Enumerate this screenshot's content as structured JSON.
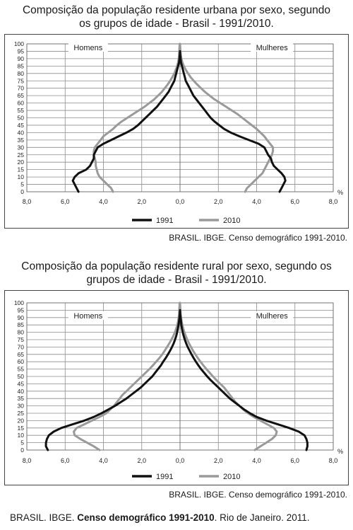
{
  "charts": [
    {
      "title_line1": "Composição da população residente urbana por sexo, segundo",
      "title_line2": "os grupos de idade - Brasil - 1991/2010.",
      "source": "BRASIL. IBGE. Censo demográfico 1991-2010."
    },
    {
      "title_line1": "Composição da população residente rural por sexo, segundo os",
      "title_line2": "grupos de idade - Brasil - 1991/2010.",
      "source": "BRASIL. IBGE. Censo demográfico 1991-2010."
    }
  ],
  "footer": {
    "prefix": "BRASIL. IBGE. ",
    "bold": "Censo demográfico 1991-2010",
    "suffix": ". Rio de Janeiro. 2011."
  },
  "chart_data": [
    {
      "type": "line",
      "title": "Composição da população residente urbana por sexo, segundo os grupos de idade - Brasil - 1991/2010.",
      "y_ticks": [
        0,
        5,
        10,
        15,
        20,
        25,
        30,
        35,
        40,
        45,
        50,
        55,
        60,
        65,
        70,
        75,
        80,
        85,
        90,
        95,
        100
      ],
      "x_tick_labels": [
        "8,0",
        "6,0",
        "4,0",
        "2,0",
        "0,0",
        "2,0",
        "4,0",
        "6,0",
        "8,0"
      ],
      "x_unit": "%",
      "xlim": [
        -8,
        8
      ],
      "ylim": [
        0,
        100
      ],
      "left_label": "Homens",
      "right_label": "Mulheres",
      "legend": [
        "1991",
        "2010"
      ],
      "colors": {
        "1991": "#111111",
        "2010": "#9a9a9a"
      },
      "series": [
        {
          "name": "1991",
          "side": "Homens",
          "y": [
            0,
            2.5,
            5,
            7.5,
            10,
            12.5,
            15,
            17.5,
            20,
            22.5,
            25,
            27.5,
            30,
            32.5,
            35,
            37.5,
            40,
            42.5,
            45,
            47.5,
            50,
            52.5,
            55,
            57.5,
            60,
            62.5,
            65,
            67.5,
            70,
            72.5,
            75,
            77.5,
            80,
            82.5,
            85,
            87.5,
            90,
            92.5,
            95
          ],
          "x": [
            5.3,
            5.4,
            5.5,
            5.6,
            5.5,
            5.3,
            4.9,
            4.7,
            4.6,
            4.5,
            4.5,
            4.4,
            4.3,
            4.0,
            3.6,
            3.2,
            2.8,
            2.45,
            2.2,
            2.0,
            1.8,
            1.6,
            1.4,
            1.2,
            1.05,
            0.9,
            0.75,
            0.6,
            0.5,
            0.4,
            0.3,
            0.25,
            0.2,
            0.15,
            0.1,
            0.05,
            0.03,
            0.01,
            0
          ]
        },
        {
          "name": "1991",
          "side": "Mulheres",
          "y": [
            0,
            2.5,
            5,
            7.5,
            10,
            12.5,
            15,
            17.5,
            20,
            22.5,
            25,
            27.5,
            30,
            32.5,
            35,
            37.5,
            40,
            42.5,
            45,
            47.5,
            50,
            52.5,
            55,
            57.5,
            60,
            62.5,
            65,
            67.5,
            70,
            72.5,
            75,
            77.5,
            80,
            82.5,
            85,
            87.5,
            90,
            92.5,
            95
          ],
          "x": [
            5.2,
            5.3,
            5.4,
            5.5,
            5.45,
            5.3,
            5.1,
            4.9,
            4.8,
            4.75,
            4.6,
            4.5,
            4.4,
            4.1,
            3.6,
            3.1,
            2.65,
            2.3,
            2.05,
            1.8,
            1.6,
            1.45,
            1.3,
            1.15,
            1.0,
            0.85,
            0.7,
            0.6,
            0.5,
            0.4,
            0.3,
            0.25,
            0.2,
            0.15,
            0.1,
            0.05,
            0.03,
            0.01,
            0
          ]
        },
        {
          "name": "2010",
          "side": "Homens",
          "y": [
            0,
            2.5,
            5,
            7.5,
            10,
            12.5,
            15,
            17.5,
            20,
            22.5,
            25,
            27.5,
            30,
            32.5,
            35,
            37.5,
            40,
            42.5,
            45,
            47.5,
            50,
            52.5,
            55,
            57.5,
            60,
            62.5,
            65,
            67.5,
            70,
            72.5,
            75,
            77.5,
            80,
            82.5,
            85,
            87.5,
            90,
            92.5,
            95,
            97.5,
            100
          ],
          "x": [
            3.5,
            3.6,
            3.8,
            4.0,
            4.2,
            4.3,
            4.35,
            4.4,
            4.4,
            4.45,
            4.5,
            4.5,
            4.45,
            4.3,
            4.15,
            4.0,
            3.75,
            3.5,
            3.3,
            3.05,
            2.75,
            2.45,
            2.15,
            1.85,
            1.6,
            1.35,
            1.15,
            0.95,
            0.8,
            0.65,
            0.52,
            0.4,
            0.3,
            0.22,
            0.15,
            0.1,
            0.07,
            0.05,
            0.04,
            0.03,
            0.02
          ]
        },
        {
          "name": "2010",
          "side": "Mulheres",
          "y": [
            0,
            2.5,
            5,
            7.5,
            10,
            12.5,
            15,
            17.5,
            20,
            22.5,
            25,
            27.5,
            30,
            32.5,
            35,
            37.5,
            40,
            42.5,
            45,
            47.5,
            50,
            52.5,
            55,
            57.5,
            60,
            62.5,
            65,
            67.5,
            70,
            72.5,
            75,
            77.5,
            80,
            82.5,
            85,
            87.5,
            90,
            92.5,
            95,
            97.5,
            100
          ],
          "x": [
            3.4,
            3.5,
            3.7,
            3.9,
            4.1,
            4.3,
            4.4,
            4.5,
            4.6,
            4.7,
            4.8,
            4.85,
            4.85,
            4.7,
            4.55,
            4.4,
            4.2,
            4.0,
            3.75,
            3.5,
            3.25,
            3.0,
            2.7,
            2.4,
            2.1,
            1.8,
            1.55,
            1.3,
            1.1,
            0.9,
            0.72,
            0.55,
            0.42,
            0.3,
            0.2,
            0.12,
            0.07,
            0.04,
            0.02,
            0.01,
            0
          ]
        }
      ]
    },
    {
      "type": "line",
      "title": "Composição da população residente rural por sexo, segundo os grupos de idade - Brasil - 1991/2010.",
      "y_ticks": [
        0,
        5,
        10,
        15,
        20,
        25,
        30,
        35,
        40,
        45,
        50,
        55,
        60,
        65,
        70,
        75,
        80,
        85,
        90,
        95,
        100
      ],
      "x_tick_labels": [
        "8,0",
        "6,0",
        "4,0",
        "2,0",
        "0,0",
        "2,0",
        "4,0",
        "6,0",
        "8,0"
      ],
      "x_unit": "%",
      "xlim": [
        -8,
        8
      ],
      "ylim": [
        0,
        100
      ],
      "left_label": "Homens",
      "right_label": "Mulheres",
      "legend": [
        "1991",
        "2010"
      ],
      "colors": {
        "1991": "#111111",
        "2010": "#9a9a9a"
      },
      "series": [
        {
          "name": "1991",
          "side": "Homens",
          "y": [
            0,
            2.5,
            5,
            7.5,
            10,
            12.5,
            15,
            17.5,
            20,
            22.5,
            25,
            27.5,
            30,
            32.5,
            35,
            37.5,
            40,
            42.5,
            45,
            47.5,
            50,
            52.5,
            55,
            57.5,
            60,
            62.5,
            65,
            67.5,
            70,
            72.5,
            75,
            77.5,
            80,
            82.5,
            85,
            87.5,
            90,
            92.5,
            95
          ],
          "x": [
            6.9,
            7.0,
            7.0,
            6.95,
            6.85,
            6.6,
            6.2,
            5.6,
            5.0,
            4.5,
            4.1,
            3.75,
            3.4,
            3.1,
            2.8,
            2.55,
            2.3,
            2.05,
            1.85,
            1.65,
            1.45,
            1.3,
            1.15,
            1.0,
            0.88,
            0.75,
            0.63,
            0.52,
            0.42,
            0.33,
            0.26,
            0.2,
            0.15,
            0.11,
            0.08,
            0.05,
            0.03,
            0.01,
            0
          ]
        },
        {
          "name": "1991",
          "side": "Mulheres",
          "y": [
            0,
            2.5,
            5,
            7.5,
            10,
            12.5,
            15,
            17.5,
            20,
            22.5,
            25,
            27.5,
            30,
            32.5,
            35,
            37.5,
            40,
            42.5,
            45,
            47.5,
            50,
            52.5,
            55,
            57.5,
            60,
            62.5,
            65,
            67.5,
            70,
            72.5,
            75,
            77.5,
            80,
            82.5,
            85,
            87.5,
            90,
            92.5,
            95
          ],
          "x": [
            6.6,
            6.65,
            6.65,
            6.6,
            6.5,
            6.2,
            5.7,
            5.1,
            4.5,
            4.0,
            3.65,
            3.35,
            3.1,
            2.85,
            2.6,
            2.4,
            2.2,
            2.0,
            1.8,
            1.6,
            1.42,
            1.26,
            1.1,
            0.96,
            0.83,
            0.71,
            0.6,
            0.5,
            0.4,
            0.32,
            0.25,
            0.19,
            0.14,
            0.1,
            0.07,
            0.05,
            0.03,
            0.01,
            0
          ]
        },
        {
          "name": "2010",
          "side": "Homens",
          "y": [
            0,
            2.5,
            5,
            7.5,
            10,
            12.5,
            15,
            17.5,
            20,
            22.5,
            25,
            27.5,
            30,
            32.5,
            35,
            37.5,
            40,
            42.5,
            45,
            47.5,
            50,
            52.5,
            55,
            57.5,
            60,
            62.5,
            65,
            67.5,
            70,
            72.5,
            75,
            77.5,
            80,
            82.5,
            85,
            87.5,
            90,
            92.5,
            95,
            97.5,
            100
          ],
          "x": [
            4.2,
            4.5,
            4.85,
            5.2,
            5.5,
            5.55,
            5.4,
            5.0,
            4.6,
            4.2,
            3.85,
            3.65,
            3.45,
            3.3,
            3.15,
            3.0,
            2.8,
            2.6,
            2.4,
            2.2,
            2.0,
            1.8,
            1.6,
            1.42,
            1.25,
            1.08,
            0.93,
            0.8,
            0.68,
            0.56,
            0.45,
            0.35,
            0.27,
            0.2,
            0.14,
            0.1,
            0.07,
            0.05,
            0.04,
            0.03,
            0.02
          ]
        },
        {
          "name": "2010",
          "side": "Mulheres",
          "y": [
            0,
            2.5,
            5,
            7.5,
            10,
            12.5,
            15,
            17.5,
            20,
            22.5,
            25,
            27.5,
            30,
            32.5,
            35,
            37.5,
            40,
            42.5,
            45,
            47.5,
            50,
            52.5,
            55,
            57.5,
            60,
            62.5,
            65,
            67.5,
            70,
            72.5,
            75,
            77.5,
            80,
            82.5,
            85,
            87.5,
            90,
            92.5,
            95,
            97.5,
            100
          ],
          "x": [
            3.9,
            4.2,
            4.5,
            4.8,
            5.0,
            5.05,
            4.9,
            4.55,
            4.2,
            3.85,
            3.55,
            3.3,
            3.1,
            2.9,
            2.75,
            2.6,
            2.45,
            2.3,
            2.1,
            1.9,
            1.72,
            1.55,
            1.38,
            1.22,
            1.07,
            0.93,
            0.8,
            0.68,
            0.57,
            0.47,
            0.38,
            0.3,
            0.23,
            0.17,
            0.12,
            0.08,
            0.05,
            0.03,
            0.02,
            0.01,
            0
          ]
        }
      ]
    }
  ]
}
